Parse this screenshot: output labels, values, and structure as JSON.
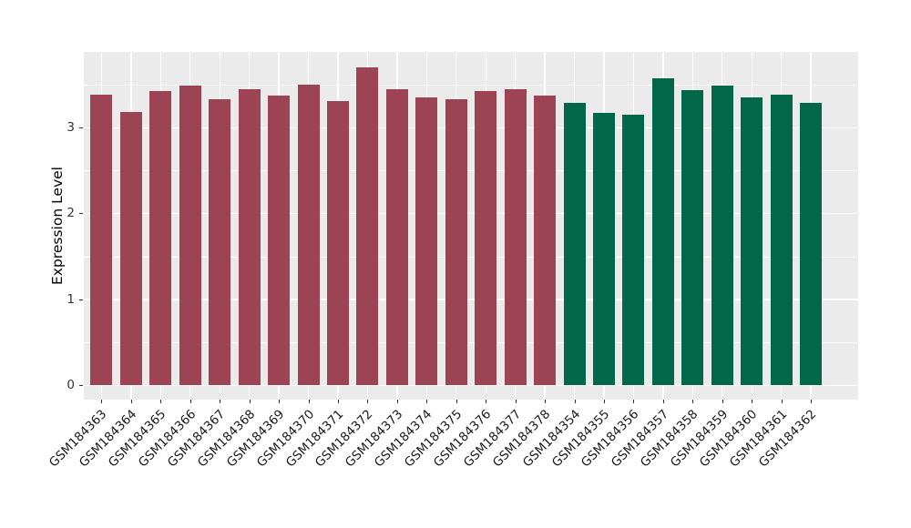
{
  "figure": {
    "background": "#FFFFFF",
    "panel_background": "#EBEBEB",
    "grid_color": "#FFFFFF",
    "axis_text_color": "#333333",
    "axis_title_color": "#000000"
  },
  "chart_data": {
    "type": "bar",
    "title": "",
    "xlabel": "",
    "ylabel": "Expression Level",
    "ylim": [
      0,
      3.89
    ],
    "yticks": [
      0,
      1,
      2,
      3
    ],
    "grid": true,
    "legend_position": "none",
    "categories": [
      "GSM184363",
      "GSM184364",
      "GSM184365",
      "GSM184366",
      "GSM184367",
      "GSM184368",
      "GSM184369",
      "GSM184370",
      "GSM184371",
      "GSM184372",
      "GSM184373",
      "GSM184374",
      "GSM184375",
      "GSM184376",
      "GSM184377",
      "GSM184378",
      "GSM184354",
      "GSM184355",
      "GSM184356",
      "GSM184357",
      "GSM184358",
      "GSM184359",
      "GSM184360",
      "GSM184361",
      "GSM184362"
    ],
    "values": [
      3.38,
      3.18,
      3.42,
      3.49,
      3.33,
      3.45,
      3.37,
      3.5,
      3.31,
      3.7,
      3.45,
      3.35,
      3.33,
      3.43,
      3.45,
      3.37,
      3.29,
      3.17,
      3.15,
      3.57,
      3.44,
      3.49,
      3.35,
      3.38,
      3.29
    ],
    "bar_colors": [
      "#9C4453",
      "#9C4453",
      "#9C4453",
      "#9C4453",
      "#9C4453",
      "#9C4453",
      "#9C4453",
      "#9C4453",
      "#9C4453",
      "#9C4453",
      "#9C4453",
      "#9C4453",
      "#9C4453",
      "#9C4453",
      "#9C4453",
      "#9C4453",
      "#036849",
      "#036849",
      "#036849",
      "#036849",
      "#036849",
      "#036849",
      "#036849",
      "#036849",
      "#036849"
    ],
    "series": [
      {
        "name": "red-group",
        "color": "#9C4453",
        "categories": [
          "GSM184363",
          "GSM184364",
          "GSM184365",
          "GSM184366",
          "GSM184367",
          "GSM184368",
          "GSM184369",
          "GSM184370",
          "GSM184371",
          "GSM184372",
          "GSM184373",
          "GSM184374",
          "GSM184375",
          "GSM184376",
          "GSM184377",
          "GSM184378"
        ]
      },
      {
        "name": "green-group",
        "color": "#036849",
        "categories": [
          "GSM184354",
          "GSM184355",
          "GSM184356",
          "GSM184357",
          "GSM184358",
          "GSM184359",
          "GSM184360",
          "GSM184361",
          "GSM184362"
        ]
      }
    ]
  }
}
